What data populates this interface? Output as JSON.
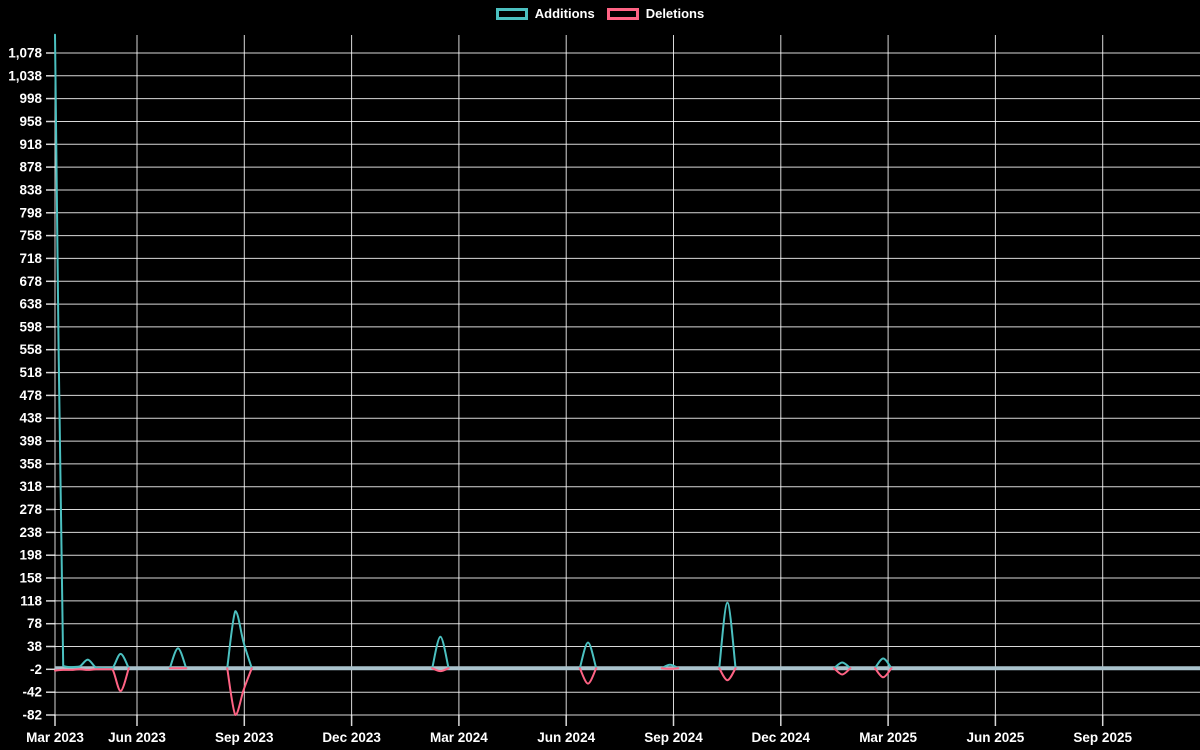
{
  "chart_data": {
    "type": "line",
    "title": "",
    "legend_position": "top",
    "grid": true,
    "background": "#000000",
    "grid_color": "rgba(255,255,255,0.85)",
    "zero_line_color": "#a9c2cc",
    "text_color": "#ffffff",
    "series": [
      {
        "name": "Additions",
        "color": "#4bc0c0"
      },
      {
        "name": "Deletions",
        "color": "#ff6384"
      }
    ],
    "x_tick_labels": [
      "Mar 2023",
      "Jun 2023",
      "Sep 2023",
      "Dec 2023",
      "Mar 2024",
      "Jun 2024",
      "Sep 2024",
      "Dec 2024",
      "Mar 2025",
      "Jun 2025",
      "Sep 2025"
    ],
    "y_tick_labels": [
      "1,078",
      "1,038",
      "998",
      "958",
      "918",
      "878",
      "838",
      "798",
      "758",
      "718",
      "678",
      "638",
      "598",
      "558",
      "518",
      "478",
      "438",
      "398",
      "358",
      "318",
      "278",
      "238",
      "198",
      "158",
      "118",
      "78",
      "38",
      "-2",
      "-42",
      "-82"
    ],
    "y_axis": {
      "min": -82,
      "max": 1110,
      "tick_step": 40
    },
    "x_axis": {
      "unit": "week",
      "week0_label": "Mar 2023"
    },
    "segments": [
      {
        "points": [
          [
            0,
            1110,
            -4
          ],
          [
            1,
            4,
            -3
          ],
          [
            2,
            2,
            -3
          ],
          [
            3,
            3,
            -2
          ],
          [
            4,
            15,
            -3
          ],
          [
            5,
            1,
            -2
          ],
          [
            6,
            0,
            -2
          ],
          [
            7,
            0,
            -2
          ],
          [
            8,
            25,
            -40
          ],
          [
            9,
            0,
            0
          ]
        ]
      },
      {
        "points": [
          [
            14,
            0,
            0
          ],
          [
            15,
            35,
            0
          ],
          [
            16,
            0,
            0
          ]
        ]
      },
      {
        "points": [
          [
            21,
            0,
            0
          ],
          [
            22,
            100,
            -82
          ],
          [
            23,
            45,
            -38
          ],
          [
            24,
            0,
            0
          ]
        ]
      },
      {
        "points": [
          [
            46,
            0,
            0
          ],
          [
            47,
            55,
            -5
          ],
          [
            48,
            0,
            0
          ]
        ]
      },
      {
        "points": [
          [
            64,
            0,
            0
          ],
          [
            65,
            45,
            -27
          ],
          [
            66,
            0,
            0
          ]
        ]
      },
      {
        "points": [
          [
            74,
            0,
            0
          ],
          [
            75,
            6,
            -1
          ],
          [
            76,
            0,
            0
          ]
        ]
      },
      {
        "points": [
          [
            81,
            0,
            0
          ],
          [
            82,
            115,
            -21
          ],
          [
            83,
            0,
            0
          ]
        ]
      },
      {
        "points": [
          [
            95,
            0,
            0
          ],
          [
            96,
            10,
            -11
          ],
          [
            97,
            0,
            0
          ]
        ]
      },
      {
        "points": [
          [
            100,
            0,
            0
          ],
          [
            101,
            17,
            -16
          ],
          [
            102,
            0,
            0
          ]
        ]
      }
    ]
  }
}
